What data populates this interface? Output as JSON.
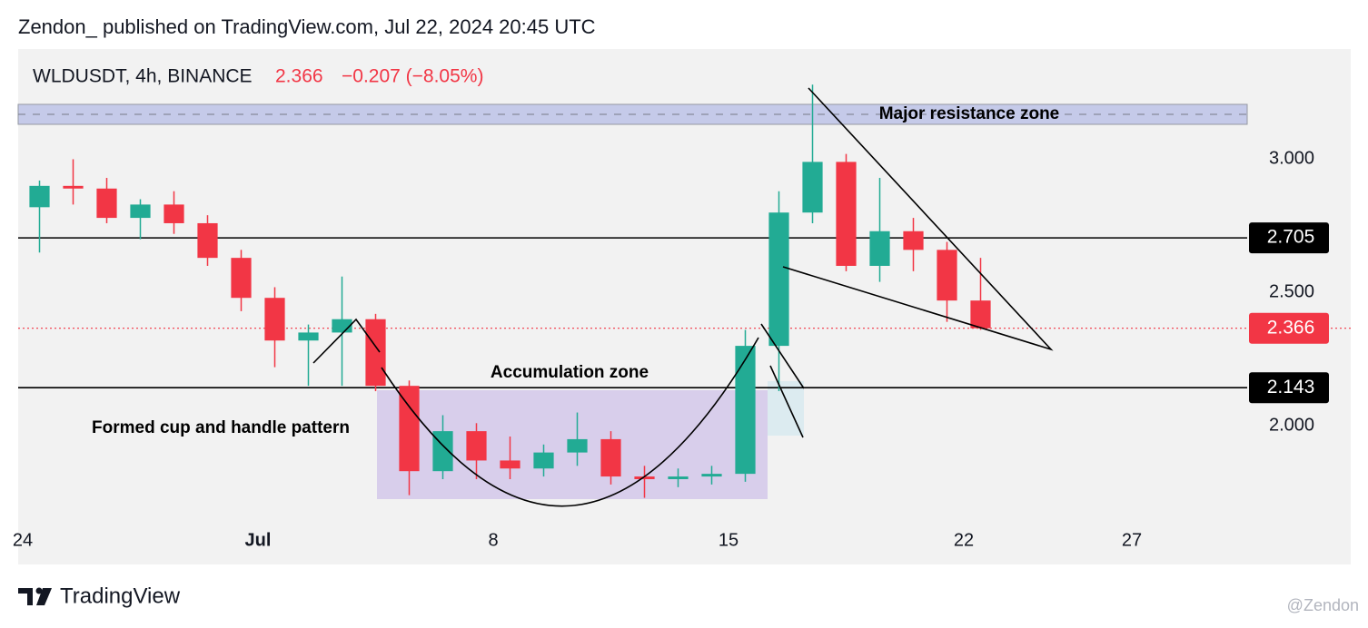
{
  "header": {
    "author_line": "Zendon_ published on TradingView.com, Jul 22, 2024 20:45 UTC"
  },
  "chart_data": {
    "type": "candlestick",
    "symbol": "WLDUSDT, 4h, BINANCE",
    "last": "2.366",
    "change": "−0.207 (−8.05%)",
    "x": [
      "2024-06-24",
      "2024-06-25",
      "2024-06-26",
      "2024-06-27",
      "2024-06-28",
      "2024-06-29",
      "2024-06-30",
      "2024-07-01",
      "2024-07-02",
      "2024-07-03",
      "2024-07-04",
      "2024-07-05",
      "2024-07-06",
      "2024-07-07",
      "2024-07-08",
      "2024-07-09",
      "2024-07-10",
      "2024-07-11",
      "2024-07-12",
      "2024-07-13",
      "2024-07-14",
      "2024-07-15",
      "2024-07-16",
      "2024-07-17",
      "2024-07-18",
      "2024-07-19",
      "2024-07-20",
      "2024-07-21",
      "2024-07-22"
    ],
    "open": [
      2.82,
      2.9,
      2.89,
      2.78,
      2.83,
      2.76,
      2.63,
      2.48,
      2.32,
      2.35,
      2.4,
      2.15,
      1.83,
      1.98,
      1.87,
      1.84,
      1.9,
      1.95,
      1.81,
      1.8,
      1.81,
      1.82,
      2.3,
      2.8,
      2.99,
      2.6,
      2.73,
      2.66,
      2.47
    ],
    "high": [
      2.92,
      3.0,
      2.93,
      2.85,
      2.88,
      2.79,
      2.66,
      2.52,
      2.38,
      2.56,
      2.42,
      2.17,
      2.04,
      2.01,
      1.96,
      1.93,
      2.05,
      1.98,
      1.85,
      1.84,
      1.85,
      2.36,
      2.88,
      3.28,
      3.02,
      2.93,
      2.78,
      2.69,
      2.63
    ],
    "low": [
      2.65,
      2.83,
      2.76,
      2.7,
      2.72,
      2.6,
      2.43,
      2.22,
      2.15,
      2.15,
      2.13,
      1.74,
      1.8,
      1.8,
      1.8,
      1.81,
      1.85,
      1.78,
      1.73,
      1.77,
      1.78,
      1.79,
      2.13,
      2.76,
      2.58,
      2.54,
      2.58,
      2.39,
      2.36
    ],
    "close": [
      2.9,
      2.89,
      2.78,
      2.83,
      2.76,
      2.63,
      2.48,
      2.32,
      2.35,
      2.4,
      2.15,
      1.83,
      1.98,
      1.87,
      1.84,
      1.9,
      1.95,
      1.81,
      1.8,
      1.81,
      1.82,
      2.3,
      2.8,
      2.99,
      2.6,
      2.73,
      2.66,
      2.47,
      2.366
    ],
    "up_color": "#22ab94",
    "down_color": "#f23645",
    "xlim": [
      "2024-06-24",
      "2024-08-02"
    ],
    "ylim": [
      1.64,
      3.41
    ],
    "xticks": [
      {
        "value": "2024-06-24",
        "label": "24"
      },
      {
        "value": "2024-07-01",
        "label": "Jul"
      },
      {
        "value": "2024-07-08",
        "label": "8"
      },
      {
        "value": "2024-07-15",
        "label": "15"
      },
      {
        "value": "2024-07-22",
        "label": "22"
      },
      {
        "value": "2024-07-27",
        "label": "27"
      }
    ],
    "yticks": [
      {
        "value": 2,
        "label": "2.000"
      },
      {
        "value": 2.5,
        "label": "2.500"
      },
      {
        "value": 3,
        "label": "3.000"
      }
    ],
    "levels": [
      {
        "value": 2.705,
        "color": "#000000",
        "style": "solid"
      },
      {
        "value": 2.366,
        "color": "#f23645",
        "style": "dotted"
      },
      {
        "value": 2.143,
        "color": "#000000",
        "style": "solid"
      }
    ],
    "annotations": [
      "Major resistance zone",
      "Accumulation zone",
      "Formed cup and handle pattern"
    ]
  },
  "footer": {
    "brand": "TradingView",
    "watermark": "@Zendon"
  }
}
